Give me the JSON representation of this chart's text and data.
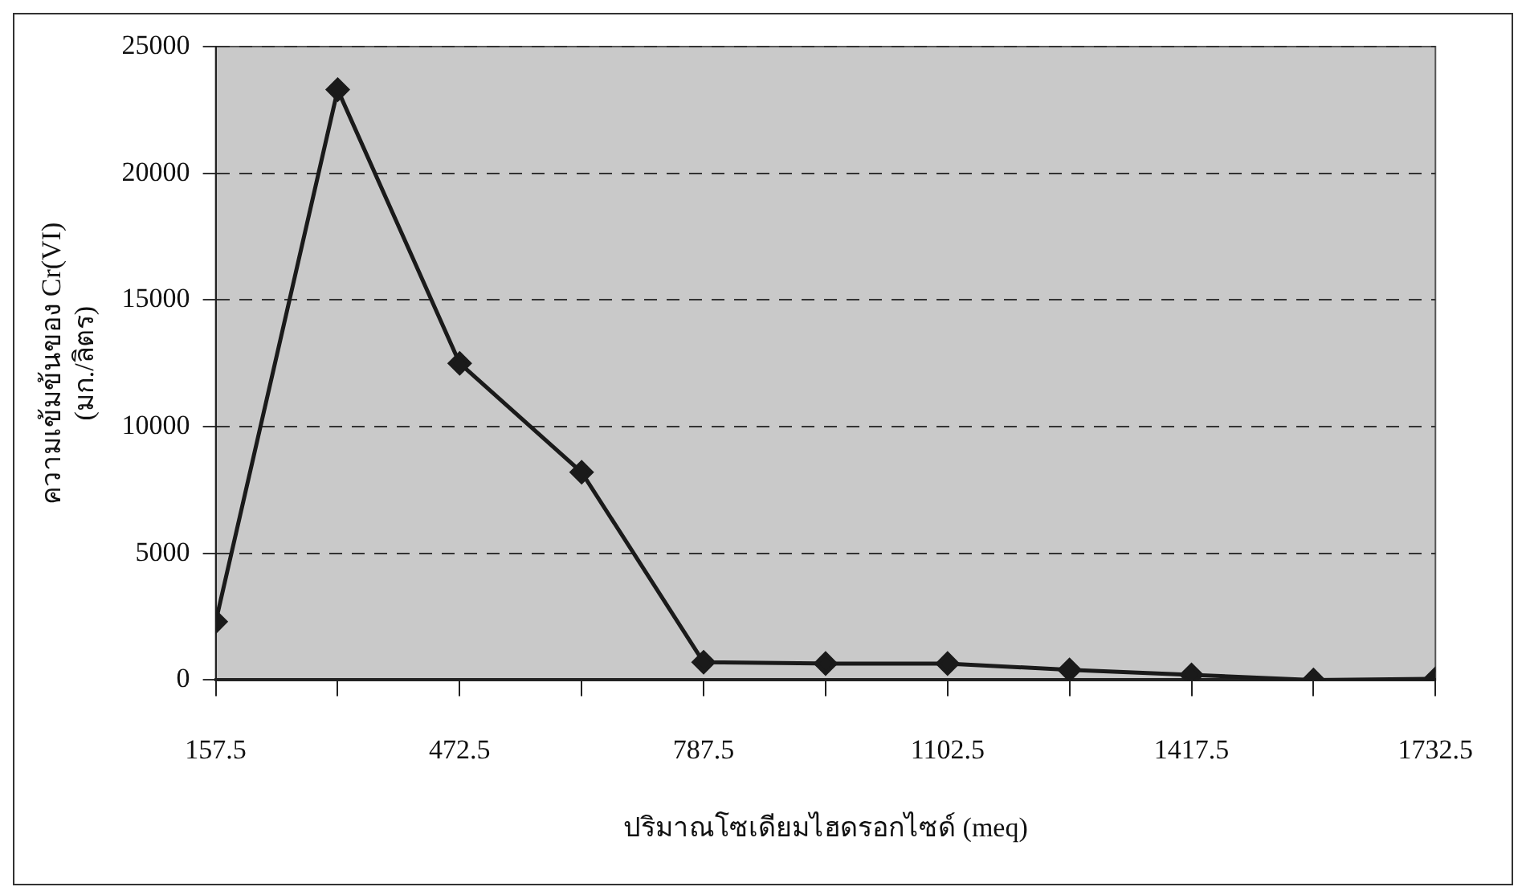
{
  "chart_data": {
    "type": "line",
    "xlabel": "ปริมาณโซเดียมไฮดรอกไซด์ (meq)",
    "ylabel": "ความเข้มข้นของ Cr(VI) (มก./ลิตร)",
    "x": [
      157.5,
      315,
      472.5,
      630,
      787.5,
      945,
      1102.5,
      1260,
      1417.5,
      1575,
      1732.5
    ],
    "series": [
      {
        "color": "#1a1a1a",
        "values": [
          2300,
          23300,
          12500,
          8200,
          700,
          650,
          650,
          400,
          200,
          0,
          50
        ]
      }
    ],
    "xlim": [
      157.5,
      1732.5
    ],
    "xticks": [
      157.5,
      {
        "value": 315,
        "label": null
      },
      472.5,
      {
        "value": 630,
        "label": null
      },
      787.5,
      {
        "value": 945,
        "label": null
      },
      1102.5,
      {
        "value": 1260,
        "label": null
      },
      1417.5,
      {
        "value": 1575,
        "label": null
      },
      1732.5
    ],
    "ylim": [
      0,
      25000
    ],
    "yticks": [
      0,
      5000,
      10000,
      15000,
      20000,
      25000
    ],
    "grid": "y",
    "line_style": "solid",
    "marker": "diamond",
    "legend": false
  }
}
